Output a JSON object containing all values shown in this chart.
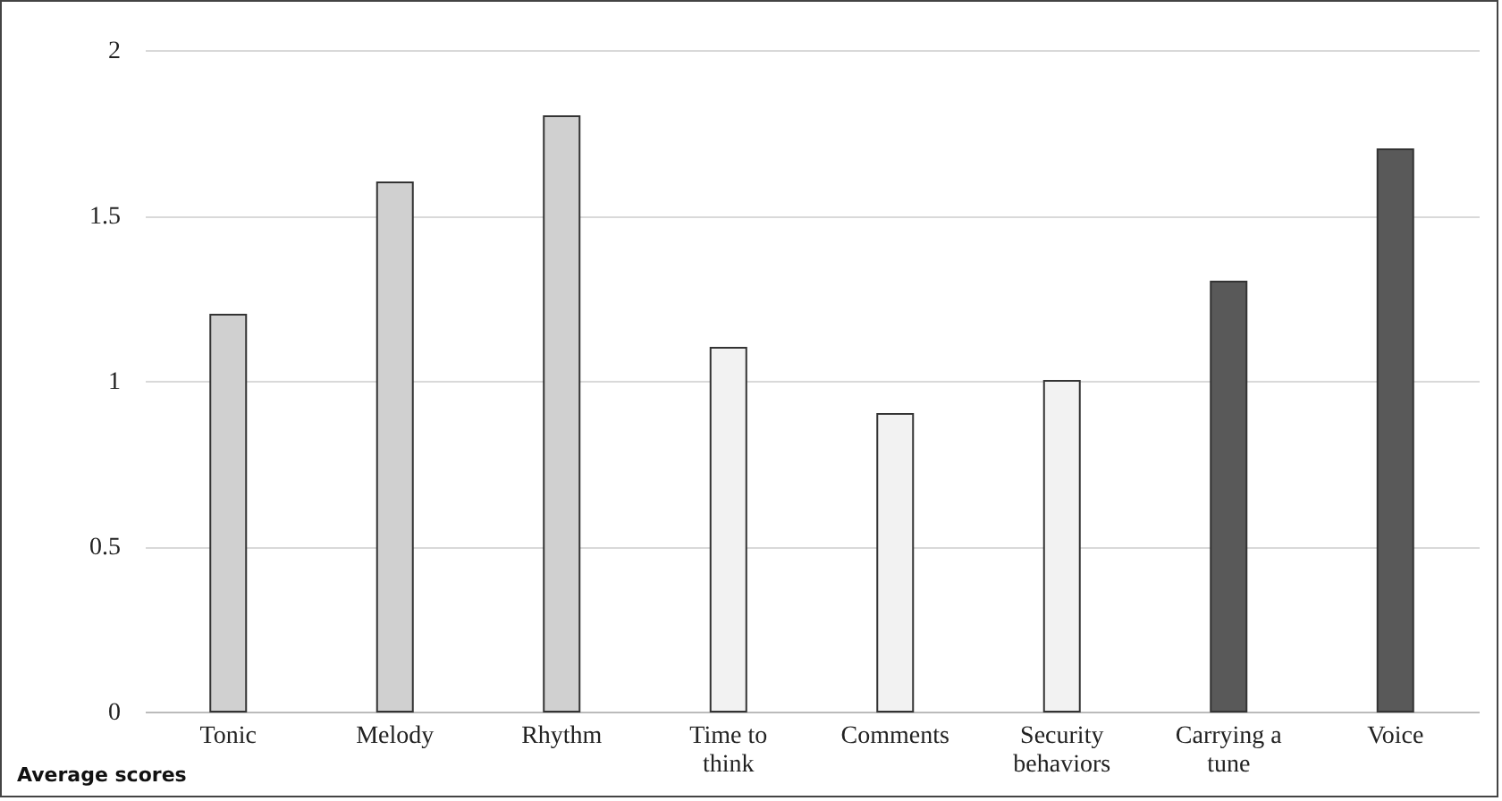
{
  "chart_data": {
    "type": "bar",
    "categories": [
      "Tonic",
      "Melody",
      "Rhythm",
      "Time to think",
      "Comments",
      "Security behaviors",
      "Carrying a tune",
      "Voice"
    ],
    "values": [
      1.2,
      1.6,
      1.8,
      1.1,
      0.9,
      1.0,
      1.3,
      1.7
    ],
    "colors": [
      "#d0d0d0",
      "#d0d0d0",
      "#d0d0d0",
      "#f2f2f2",
      "#f2f2f2",
      "#f2f2f2",
      "#595959",
      "#595959"
    ],
    "ylim": [
      0,
      2
    ],
    "yticks": [
      0,
      0.5,
      1,
      1.5,
      2
    ],
    "grid": "y",
    "annotations": [
      "Average scores"
    ]
  }
}
